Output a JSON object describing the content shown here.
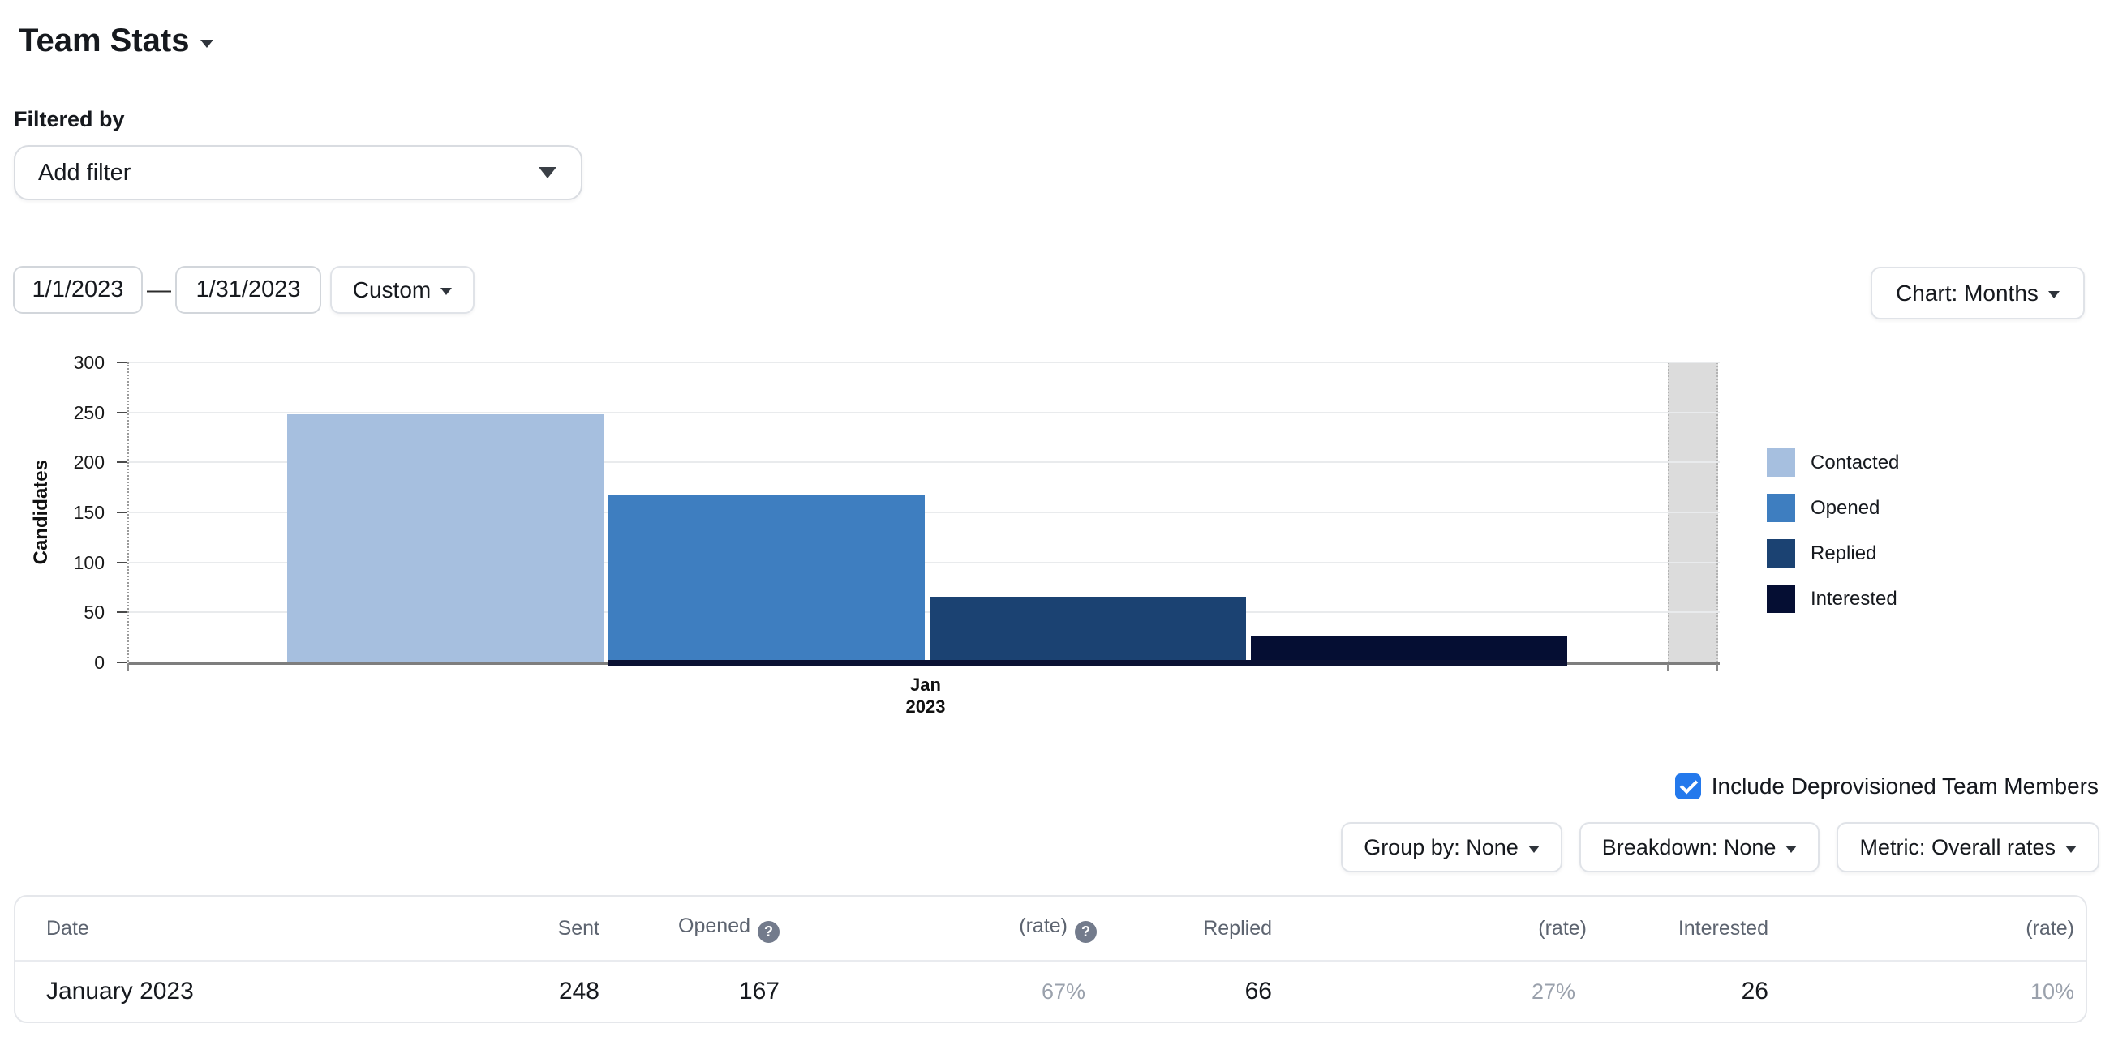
{
  "page": {
    "title": "Team Stats"
  },
  "filter": {
    "label": "Filtered by",
    "add_filter_label": "Add filter"
  },
  "date_range": {
    "start": "1/1/2023",
    "separator": "—",
    "end": "1/31/2023",
    "preset_label": "Custom"
  },
  "chart_controls": {
    "chart_button_label": "Chart: Months"
  },
  "chart_data": {
    "type": "bar",
    "title": "",
    "xlabel": "",
    "ylabel": "Candidates",
    "x_tick_lines": [
      "Jan",
      "2023"
    ],
    "ylim": [
      0,
      300
    ],
    "yticks": [
      0,
      50,
      100,
      150,
      200,
      250,
      300
    ],
    "grid": true,
    "legend_position": "right",
    "categories": [
      "Jan 2023"
    ],
    "series": [
      {
        "name": "Contacted",
        "values": [
          248
        ],
        "color": "#a6bfdf"
      },
      {
        "name": "Opened",
        "values": [
          167
        ],
        "color": "#3e7ec0"
      },
      {
        "name": "Replied",
        "values": [
          66
        ],
        "color": "#1b4272"
      },
      {
        "name": "Interested",
        "values": [
          26
        ],
        "color": "#050e33"
      }
    ],
    "future_period_color": "#dcdcdc"
  },
  "options": {
    "include_deprovisioned": {
      "label": "Include Deprovisioned Team Members",
      "checked": true
    }
  },
  "controls": {
    "group_by_label": "Group by: None",
    "breakdown_label": "Breakdown: None",
    "metric_label": "Metric: Overall rates"
  },
  "table": {
    "help_glyph": "?",
    "headers": {
      "date": "Date",
      "sent": "Sent",
      "opened": "Opened",
      "opened_rate": "(rate)",
      "replied": "Replied",
      "replied_rate": "(rate)",
      "interested": "Interested",
      "interested_rate": "(rate)"
    },
    "rows": [
      {
        "date": "January 2023",
        "sent": "248",
        "opened": "167",
        "opened_rate": "67%",
        "replied": "66",
        "replied_rate": "27%",
        "interested": "26",
        "interested_rate": "10%"
      }
    ]
  }
}
